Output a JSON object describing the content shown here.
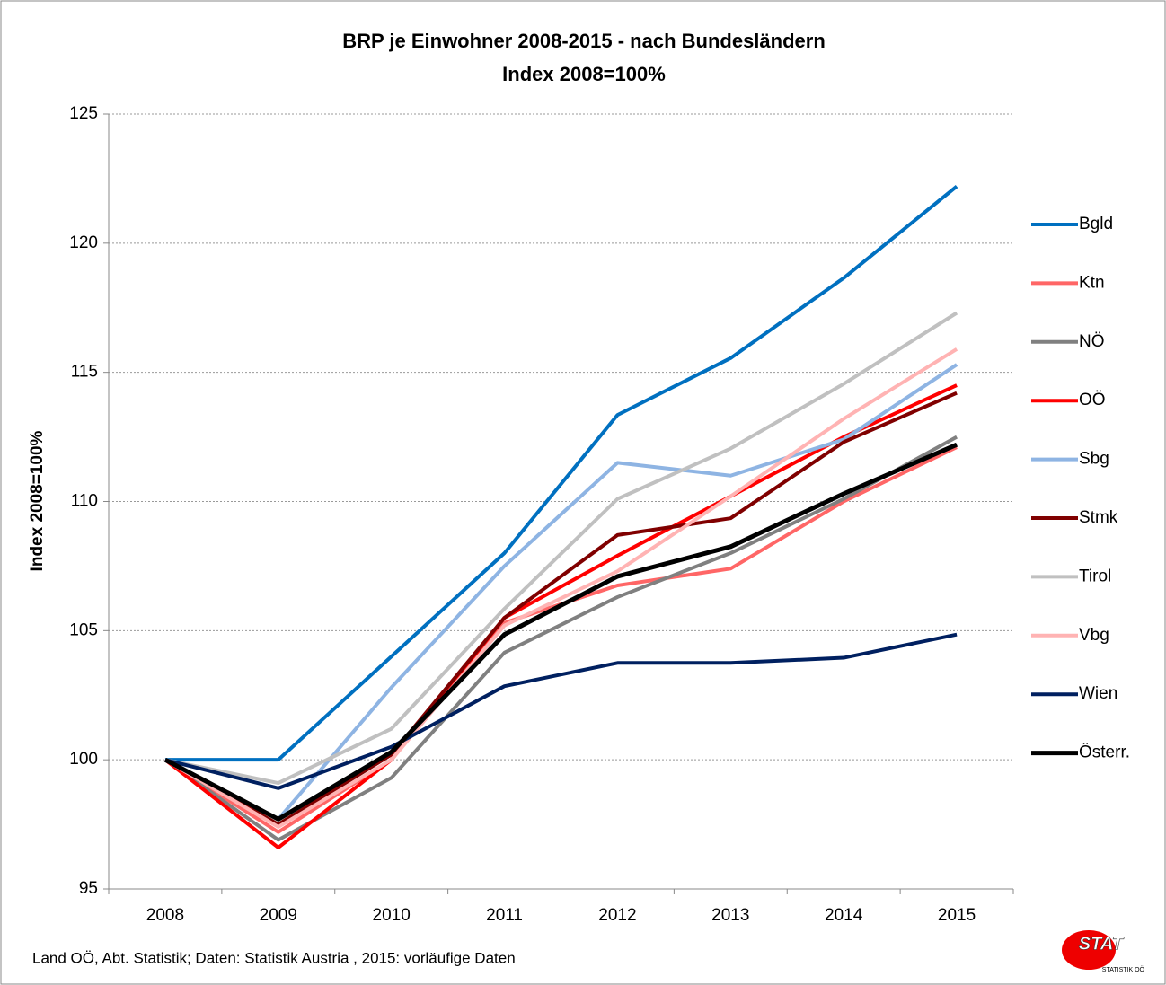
{
  "chart_data": {
    "type": "line",
    "title": "BRP je Einwohner 2008-2015 - nach Bundesländern",
    "subtitle": "Index 2008=100%",
    "y_label": "Index 2008=100%",
    "source": "Land OÖ, Abt. Statistik; Daten: Statistik Austria , 2015: vorläufige Daten",
    "logo": {
      "text": "STAT",
      "subtext": "STATISTIK OÖ"
    },
    "categories": [
      "2008",
      "2009",
      "2010",
      "2011",
      "2012",
      "2013",
      "2014",
      "2015"
    ],
    "ylim": [
      95,
      125
    ],
    "yticks": [
      95,
      100,
      105,
      110,
      115,
      120,
      125
    ],
    "grid": true,
    "legend": "right",
    "series": [
      {
        "name": "Bgld",
        "color": "#0070c0",
        "values": [
          100,
          100,
          104.0,
          108.0,
          113.35,
          115.55,
          118.65,
          122.2
        ]
      },
      {
        "name": "Ktn",
        "color": "#ff6666",
        "values": [
          100,
          97.2,
          100.0,
          105.3,
          106.75,
          107.4,
          110.0,
          112.1
        ]
      },
      {
        "name": "NÖ",
        "color": "#808080",
        "values": [
          100,
          96.9,
          99.3,
          104.15,
          106.3,
          108.0,
          110.1,
          112.5
        ]
      },
      {
        "name": "OÖ",
        "color": "#ff0000",
        "values": [
          100,
          96.6,
          100.0,
          105.5,
          107.9,
          110.2,
          112.5,
          114.5
        ]
      },
      {
        "name": "Sbg",
        "color": "#8eb4e3",
        "values": [
          100,
          97.7,
          102.8,
          107.5,
          111.5,
          111.0,
          112.4,
          115.3
        ]
      },
      {
        "name": "Stmk",
        "color": "#800000",
        "values": [
          100,
          97.5,
          100.2,
          105.5,
          108.7,
          109.35,
          112.3,
          114.2
        ]
      },
      {
        "name": "Tirol",
        "color": "#c0c0c0",
        "values": [
          100,
          99.1,
          101.2,
          105.85,
          110.1,
          112.05,
          114.55,
          117.3
        ]
      },
      {
        "name": "Vbg",
        "color": "#ffb3b3",
        "values": [
          100,
          97.4,
          100.0,
          105.2,
          107.3,
          110.2,
          113.2,
          115.9
        ]
      },
      {
        "name": "Wien",
        "color": "#002060",
        "values": [
          100,
          98.9,
          100.5,
          102.85,
          103.75,
          103.75,
          103.95,
          104.85
        ]
      },
      {
        "name": "Österr.",
        "color": "#000000",
        "values": [
          100,
          97.7,
          100.3,
          104.85,
          107.1,
          108.25,
          110.3,
          112.2
        ]
      }
    ]
  }
}
